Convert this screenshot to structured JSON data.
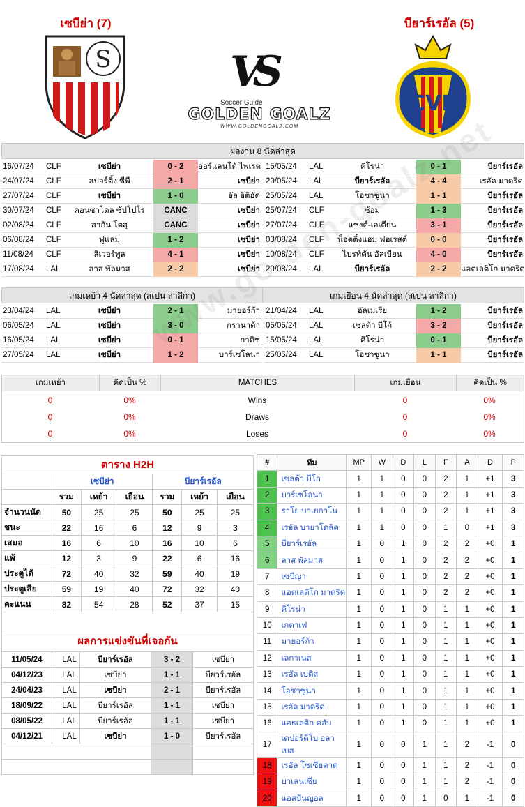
{
  "header": {
    "home_team": "เซบีย่า (7)",
    "away_team": "บียาร์เรอัล (5)",
    "vs": "VS",
    "brand_top": "Soccer Guide",
    "brand_main": "GOLDEN GOALZ",
    "brand_url": "WWW.GOLDENGOALZ.COM"
  },
  "colors": {
    "win": "#8ccc8c",
    "loss": "#f5a8a8",
    "draw": "#f7cba8",
    "canc": "#dcdcdc",
    "title_red": "#d10000",
    "team_blue": "#2255cc"
  },
  "last8": {
    "title": "ผลงาน 8 นัดล่าสุด",
    "home": [
      {
        "date": "16/07/24",
        "league": "CLF",
        "home": "เซบีย่า",
        "score": "0 - 2",
        "away": "ออร์แลนโด้ ไพเรตส์",
        "res": "loss",
        "hb": true,
        "ab": false
      },
      {
        "date": "24/07/24",
        "league": "CLF",
        "home": "สปอร์ติ้ง ซีพี",
        "score": "2 - 1",
        "away": "เซบีย่า",
        "res": "loss",
        "hb": false,
        "ab": true
      },
      {
        "date": "27/07/24",
        "league": "CLF",
        "home": "เซบีย่า",
        "score": "1 - 0",
        "away": "อัล อิติฮัด",
        "res": "win",
        "hb": true,
        "ab": false
      },
      {
        "date": "30/07/24",
        "league": "CLF",
        "home": "คอนซาโดล ซัปโปโร",
        "score": "CANC",
        "away": "เซบีย่า",
        "res": "canc",
        "hb": false,
        "ab": true
      },
      {
        "date": "02/08/24",
        "league": "CLF",
        "home": "สากัน โตสุ",
        "score": "CANC",
        "away": "เซบีย่า",
        "res": "canc",
        "hb": false,
        "ab": true
      },
      {
        "date": "06/08/24",
        "league": "CLF",
        "home": "ฟูแลม",
        "score": "1 - 2",
        "away": "เซบีย่า",
        "res": "win",
        "hb": false,
        "ab": true
      },
      {
        "date": "11/08/24",
        "league": "CLF",
        "home": "ลิเวอร์พูล",
        "score": "4 - 1",
        "away": "เซบีย่า",
        "res": "loss",
        "hb": false,
        "ab": true
      },
      {
        "date": "17/08/24",
        "league": "LAL",
        "home": "ลาส พัลมาส",
        "score": "2 - 2",
        "away": "เซบีย่า",
        "res": "draw",
        "hb": false,
        "ab": true
      }
    ],
    "away": [
      {
        "date": "15/05/24",
        "league": "LAL",
        "home": "คิโรน่า",
        "score": "0 - 1",
        "away": "บียาร์เรอัล",
        "res": "win",
        "hb": false,
        "ab": true
      },
      {
        "date": "20/05/24",
        "league": "LAL",
        "home": "บียาร์เรอัล",
        "score": "4 - 4",
        "away": "เรอัล มาดริด",
        "res": "draw",
        "hb": true,
        "ab": false
      },
      {
        "date": "25/05/24",
        "league": "LAL",
        "home": "โอซาซูนา",
        "score": "1 - 1",
        "away": "บียาร์เรอัล",
        "res": "draw",
        "hb": false,
        "ab": true
      },
      {
        "date": "25/07/24",
        "league": "CLF",
        "home": "ซ้อม",
        "score": "1 - 3",
        "away": "บียาร์เรอัล",
        "res": "win",
        "hb": false,
        "ab": true
      },
      {
        "date": "27/07/24",
        "league": "CLF",
        "home": "แซงต์-เอเตียน",
        "score": "3 - 1",
        "away": "บียาร์เรอัล",
        "res": "loss",
        "hb": false,
        "ab": true
      },
      {
        "date": "03/08/24",
        "league": "CLF",
        "home": "น็อตติ้งแฮม ฟอเรสต์",
        "score": "0 - 0",
        "away": "บียาร์เรอัล",
        "res": "draw",
        "hb": false,
        "ab": true
      },
      {
        "date": "10/08/24",
        "league": "CLF",
        "home": "ไบรท์ตัน อัลเบียน",
        "score": "4 - 0",
        "away": "บียาร์เรอัล",
        "res": "loss",
        "hb": false,
        "ab": true
      },
      {
        "date": "20/08/24",
        "league": "LAL",
        "home": "บียาร์เรอัล",
        "score": "2 - 2",
        "away": "แอตเลติโก มาดริด",
        "res": "draw",
        "hb": true,
        "ab": false
      }
    ]
  },
  "last4": {
    "home_title": "เกมเหย้า 4 นัดล่าสุด (สเปน ลาลีกา)",
    "away_title": "เกมเยือน 4 นัดล่าสุด (สเปน ลาลีกา)",
    "home": [
      {
        "date": "23/04/24",
        "league": "LAL",
        "home": "เซบีย่า",
        "score": "2 - 1",
        "away": "มายอร์ก้า",
        "res": "win",
        "hb": true,
        "ab": false
      },
      {
        "date": "06/05/24",
        "league": "LAL",
        "home": "เซบีย่า",
        "score": "3 - 0",
        "away": "กรานาด้า",
        "res": "win",
        "hb": true,
        "ab": false
      },
      {
        "date": "16/05/24",
        "league": "LAL",
        "home": "เซบีย่า",
        "score": "0 - 1",
        "away": "กาดิซ",
        "res": "loss",
        "hb": true,
        "ab": false
      },
      {
        "date": "27/05/24",
        "league": "LAL",
        "home": "เซบีย่า",
        "score": "1 - 2",
        "away": "บาร์เซโลนา",
        "res": "loss",
        "hb": true,
        "ab": false
      }
    ],
    "away": [
      {
        "date": "21/04/24",
        "league": "LAL",
        "home": "อัลเมเรีย",
        "score": "1 - 2",
        "away": "บียาร์เรอัล",
        "res": "win",
        "hb": false,
        "ab": true
      },
      {
        "date": "05/05/24",
        "league": "LAL",
        "home": "เซลต้า บีโก้",
        "score": "3 - 2",
        "away": "บียาร์เรอัล",
        "res": "loss",
        "hb": false,
        "ab": true
      },
      {
        "date": "15/05/24",
        "league": "LAL",
        "home": "คิโรน่า",
        "score": "0 - 1",
        "away": "บียาร์เรอัล",
        "res": "win",
        "hb": false,
        "ab": true
      },
      {
        "date": "25/05/24",
        "league": "LAL",
        "home": "โอซาซูนา",
        "score": "1 - 1",
        "away": "บียาร์เรอัล",
        "res": "draw",
        "hb": false,
        "ab": true
      }
    ]
  },
  "stats": {
    "headers": [
      "เกมเหย้า",
      "คิดเป็น %",
      "MATCHES",
      "เกมเยือน",
      "คิดเป็น %"
    ],
    "rows": [
      {
        "h": "0",
        "hp": "0%",
        "label": "Wins",
        "a": "0",
        "ap": "0%"
      },
      {
        "h": "0",
        "hp": "0%",
        "label": "Draws",
        "a": "0",
        "ap": "0%"
      },
      {
        "h": "0",
        "hp": "0%",
        "label": "Loses",
        "a": "0",
        "ap": "0%"
      }
    ]
  },
  "h2h": {
    "title": "ตาราง H2H",
    "home_team": "เซบีย่า",
    "away_team": "บียาร์เรอัล",
    "cols": [
      "รวม",
      "เหย้า",
      "เยือน",
      "รวม",
      "เหย้า",
      "เยือน"
    ],
    "rows": [
      {
        "label": "จำนวนนัด",
        "v": [
          "50",
          "25",
          "25",
          "50",
          "25",
          "25"
        ]
      },
      {
        "label": "ชนะ",
        "v": [
          "22",
          "16",
          "6",
          "12",
          "9",
          "3"
        ]
      },
      {
        "label": "เสมอ",
        "v": [
          "16",
          "6",
          "10",
          "16",
          "10",
          "6"
        ]
      },
      {
        "label": "แพ้",
        "v": [
          "12",
          "3",
          "9",
          "22",
          "6",
          "16"
        ]
      },
      {
        "label": "ประตูได้",
        "v": [
          "72",
          "40",
          "32",
          "59",
          "40",
          "19"
        ]
      },
      {
        "label": "ประตูเสีย",
        "v": [
          "59",
          "19",
          "40",
          "72",
          "32",
          "40"
        ]
      },
      {
        "label": "คะแนน",
        "v": [
          "82",
          "54",
          "28",
          "52",
          "37",
          "15"
        ]
      }
    ]
  },
  "results": {
    "title": "ผลการแข่งขันที่เจอกัน",
    "rows": [
      {
        "date": "11/05/24",
        "league": "LAL",
        "home": "บียาร์เรอัล",
        "score": "3 - 2",
        "away": "เซบีย่า",
        "hb": true
      },
      {
        "date": "04/12/23",
        "league": "LAL",
        "home": "เซบีย่า",
        "score": "1 - 1",
        "away": "บียาร์เรอัล",
        "hb": false
      },
      {
        "date": "24/04/23",
        "league": "LAL",
        "home": "เซบีย่า",
        "score": "2 - 1",
        "away": "บียาร์เรอัล",
        "hb": true
      },
      {
        "date": "18/09/22",
        "league": "LAL",
        "home": "บียาร์เรอัล",
        "score": "1 - 1",
        "away": "เซบีย่า",
        "hb": false
      },
      {
        "date": "08/05/22",
        "league": "LAL",
        "home": "บียาร์เรอัล",
        "score": "1 - 1",
        "away": "เซบีย่า",
        "hb": false
      },
      {
        "date": "04/12/21",
        "league": "LAL",
        "home": "เซบีย่า",
        "score": "1 - 0",
        "away": "บียาร์เรอัล",
        "hb": true
      }
    ]
  },
  "league_table": {
    "headers": [
      "#",
      "ทีม",
      "MP",
      "W",
      "D",
      "L",
      "F",
      "A",
      "D",
      "P"
    ],
    "rows": [
      {
        "rank": "1",
        "team": "เซลต้า บีโก",
        "mp": "1",
        "w": "1",
        "d": "0",
        "l": "0",
        "f": "2",
        "a": "1",
        "gd": "+1",
        "p": "3",
        "zone": "g"
      },
      {
        "rank": "2",
        "team": "บาร์เซโลนา",
        "mp": "1",
        "w": "1",
        "d": "0",
        "l": "0",
        "f": "2",
        "a": "1",
        "gd": "+1",
        "p": "3",
        "zone": "g"
      },
      {
        "rank": "3",
        "team": "ราโย บาเยกาโน",
        "mp": "1",
        "w": "1",
        "d": "0",
        "l": "0",
        "f": "2",
        "a": "1",
        "gd": "+1",
        "p": "3",
        "zone": "g"
      },
      {
        "rank": "4",
        "team": "เรอัล บายาโดลิด",
        "mp": "1",
        "w": "1",
        "d": "0",
        "l": "0",
        "f": "1",
        "a": "0",
        "gd": "+1",
        "p": "3",
        "zone": "g"
      },
      {
        "rank": "5",
        "team": "บียาร์เรอัล",
        "mp": "1",
        "w": "0",
        "d": "1",
        "l": "0",
        "f": "2",
        "a": "2",
        "gd": "+0",
        "p": "1",
        "zone": "lg"
      },
      {
        "rank": "6",
        "team": "ลาส พัลมาส",
        "mp": "1",
        "w": "0",
        "d": "1",
        "l": "0",
        "f": "2",
        "a": "2",
        "gd": "+0",
        "p": "1",
        "zone": "lg"
      },
      {
        "rank": "7",
        "team": "เซบีญา",
        "mp": "1",
        "w": "0",
        "d": "1",
        "l": "0",
        "f": "2",
        "a": "2",
        "gd": "+0",
        "p": "1",
        "zone": ""
      },
      {
        "rank": "8",
        "team": "แอตเลติโก มาดริด",
        "mp": "1",
        "w": "0",
        "d": "1",
        "l": "0",
        "f": "2",
        "a": "2",
        "gd": "+0",
        "p": "1",
        "zone": ""
      },
      {
        "rank": "9",
        "team": "คิโรน่า",
        "mp": "1",
        "w": "0",
        "d": "1",
        "l": "0",
        "f": "1",
        "a": "1",
        "gd": "+0",
        "p": "1",
        "zone": ""
      },
      {
        "rank": "10",
        "team": "เกตาเฟ",
        "mp": "1",
        "w": "0",
        "d": "1",
        "l": "0",
        "f": "1",
        "a": "1",
        "gd": "+0",
        "p": "1",
        "zone": ""
      },
      {
        "rank": "11",
        "team": "มายอร์ก้า",
        "mp": "1",
        "w": "0",
        "d": "1",
        "l": "0",
        "f": "1",
        "a": "1",
        "gd": "+0",
        "p": "1",
        "zone": ""
      },
      {
        "rank": "12",
        "team": "เลกาเนส",
        "mp": "1",
        "w": "0",
        "d": "1",
        "l": "0",
        "f": "1",
        "a": "1",
        "gd": "+0",
        "p": "1",
        "zone": ""
      },
      {
        "rank": "13",
        "team": "เรอัล เบติส",
        "mp": "1",
        "w": "0",
        "d": "1",
        "l": "0",
        "f": "1",
        "a": "1",
        "gd": "+0",
        "p": "1",
        "zone": ""
      },
      {
        "rank": "14",
        "team": "โอซาซูนา",
        "mp": "1",
        "w": "0",
        "d": "1",
        "l": "0",
        "f": "1",
        "a": "1",
        "gd": "+0",
        "p": "1",
        "zone": ""
      },
      {
        "rank": "15",
        "team": "เรอัล มาดริด",
        "mp": "1",
        "w": "0",
        "d": "1",
        "l": "0",
        "f": "1",
        "a": "1",
        "gd": "+0",
        "p": "1",
        "zone": ""
      },
      {
        "rank": "16",
        "team": "แอธเลติก คลับ",
        "mp": "1",
        "w": "0",
        "d": "1",
        "l": "0",
        "f": "1",
        "a": "1",
        "gd": "+0",
        "p": "1",
        "zone": ""
      },
      {
        "rank": "17",
        "team": "เดปอร์ติโบ อลาเบส",
        "mp": "1",
        "w": "0",
        "d": "0",
        "l": "1",
        "f": "1",
        "a": "2",
        "gd": "-1",
        "p": "0",
        "zone": ""
      },
      {
        "rank": "18",
        "team": "เรอัล โซเซียดาด",
        "mp": "1",
        "w": "0",
        "d": "0",
        "l": "1",
        "f": "1",
        "a": "2",
        "gd": "-1",
        "p": "0",
        "zone": "r"
      },
      {
        "rank": "19",
        "team": "บาเลนเซีย",
        "mp": "1",
        "w": "0",
        "d": "0",
        "l": "1",
        "f": "1",
        "a": "2",
        "gd": "-1",
        "p": "0",
        "zone": "r"
      },
      {
        "rank": "20",
        "team": "แอสปันญอล",
        "mp": "1",
        "w": "0",
        "d": "0",
        "l": "1",
        "f": "0",
        "a": "1",
        "gd": "-1",
        "p": "0",
        "zone": "r"
      }
    ]
  }
}
